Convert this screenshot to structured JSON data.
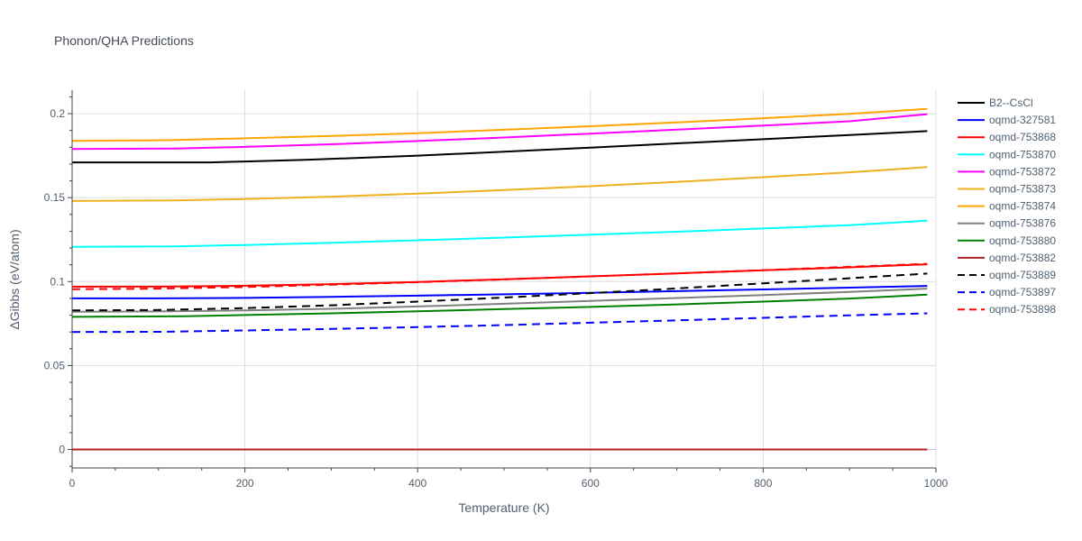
{
  "chart_data": {
    "type": "line",
    "title": "Phonon/QHA Predictions",
    "xlabel": "Temperature (K)",
    "ylabel": "ΔGibbs (eV/atom)",
    "xlim": [
      0,
      1000
    ],
    "ylim": [
      -0.011,
      0.214
    ],
    "xticks": [
      0,
      200,
      400,
      600,
      800,
      1000
    ],
    "xtick_labels": [
      "0",
      "200",
      "400",
      "600",
      "800",
      "1000"
    ],
    "yticks": [
      0,
      0.05,
      0.1,
      0.15,
      0.2
    ],
    "ytick_labels": [
      "0",
      "0.05",
      "0.1",
      "0.15",
      "0.2"
    ],
    "grid": true,
    "legend_position": "right",
    "series": [
      {
        "name": "B2--CsCl",
        "color": "#000000",
        "dash": "solid",
        "x": [
          0,
          100,
          160,
          200,
          270,
          400,
          500,
          600,
          700,
          800,
          900,
          990
        ],
        "y": [
          0.171,
          0.171,
          0.171,
          0.1715,
          0.1725,
          0.175,
          0.1773,
          0.1798,
          0.1823,
          0.1848,
          0.1873,
          0.1896
        ]
      },
      {
        "name": "oqmd-327581",
        "color": "#0000ff",
        "dash": "solid",
        "x": [
          0,
          100,
          200,
          300,
          400,
          500,
          600,
          700,
          800,
          900,
          990
        ],
        "y": [
          0.09,
          0.09,
          0.0903,
          0.0909,
          0.0916,
          0.0924,
          0.0933,
          0.0943,
          0.0953,
          0.0964,
          0.0974
        ]
      },
      {
        "name": "oqmd-753868",
        "color": "#ff0000",
        "dash": "solid",
        "x": [
          0,
          100,
          200,
          300,
          400,
          500,
          600,
          700,
          800,
          900,
          990
        ],
        "y": [
          0.097,
          0.097,
          0.0975,
          0.0985,
          0.0998,
          0.1014,
          0.1031,
          0.1049,
          0.1067,
          0.1085,
          0.1103
        ]
      },
      {
        "name": "oqmd-753870",
        "color": "#00ffff",
        "dash": "solid",
        "x": [
          0,
          120,
          200,
          300,
          400,
          500,
          600,
          700,
          800,
          900,
          990
        ],
        "y": [
          0.1207,
          0.121,
          0.1218,
          0.1231,
          0.1246,
          0.1262,
          0.1279,
          0.1297,
          0.1316,
          0.1336,
          0.1363
        ]
      },
      {
        "name": "oqmd-753872",
        "color": "#ff00ff",
        "dash": "solid",
        "x": [
          0,
          120,
          200,
          300,
          400,
          500,
          600,
          700,
          800,
          900,
          990
        ],
        "y": [
          0.179,
          0.1792,
          0.1802,
          0.1818,
          0.1837,
          0.1858,
          0.1881,
          0.1905,
          0.1929,
          0.1955,
          0.1997
        ]
      },
      {
        "name": "oqmd-753873",
        "color": "#f0b020",
        "dash": "solid",
        "x": [
          0,
          120,
          200,
          300,
          400,
          500,
          600,
          700,
          800,
          900,
          990
        ],
        "y": [
          0.148,
          0.1483,
          0.1492,
          0.1506,
          0.1524,
          0.1545,
          0.1568,
          0.1594,
          0.1622,
          0.1651,
          0.1682
        ]
      },
      {
        "name": "oqmd-753874",
        "color": "#ffa500",
        "dash": "solid",
        "x": [
          0,
          110,
          200,
          300,
          400,
          500,
          600,
          700,
          800,
          900,
          990
        ],
        "y": [
          0.1838,
          0.1842,
          0.1853,
          0.1867,
          0.1884,
          0.1904,
          0.1925,
          0.1948,
          0.1973,
          0.1999,
          0.2029
        ]
      },
      {
        "name": "oqmd-753876",
        "color": "#808080",
        "dash": "solid",
        "x": [
          0,
          100,
          200,
          300,
          400,
          500,
          600,
          700,
          800,
          900,
          990
        ],
        "y": [
          0.082,
          0.0822,
          0.0828,
          0.0838,
          0.0852,
          0.0868,
          0.0885,
          0.0902,
          0.092,
          0.0938,
          0.0958
        ]
      },
      {
        "name": "oqmd-753880",
        "color": "#008000",
        "dash": "solid",
        "x": [
          0,
          130,
          200,
          300,
          400,
          500,
          600,
          700,
          800,
          900,
          990
        ],
        "y": [
          0.079,
          0.0793,
          0.0801,
          0.0811,
          0.0823,
          0.0836,
          0.0849,
          0.0864,
          0.0881,
          0.0899,
          0.0922
        ]
      },
      {
        "name": "oqmd-753882",
        "color": "#b22222",
        "dash": "solid",
        "x": [
          0,
          990
        ],
        "y": [
          0.0,
          0.0
        ]
      },
      {
        "name": "oqmd-753889",
        "color": "#000000",
        "dash": "dash",
        "x": [
          0,
          100,
          200,
          300,
          400,
          500,
          600,
          700,
          800,
          900,
          990
        ],
        "y": [
          0.0828,
          0.0831,
          0.0842,
          0.0859,
          0.0881,
          0.0905,
          0.0931,
          0.0959,
          0.0989,
          0.102,
          0.1048
        ]
      },
      {
        "name": "oqmd-753897",
        "color": "#0000ff",
        "dash": "dash",
        "x": [
          0,
          100,
          200,
          300,
          400,
          500,
          600,
          700,
          800,
          900,
          990
        ],
        "y": [
          0.07,
          0.0701,
          0.0709,
          0.0718,
          0.0729,
          0.0741,
          0.0755,
          0.0769,
          0.0784,
          0.0799,
          0.0811
        ]
      },
      {
        "name": "oqmd-753898",
        "color": "#ff0000",
        "dash": "dash",
        "x": [
          0,
          100,
          200,
          300,
          400,
          500,
          600,
          700,
          800,
          900,
          990
        ],
        "y": [
          0.0955,
          0.0958,
          0.0968,
          0.0981,
          0.0996,
          0.1013,
          0.1031,
          0.1049,
          0.1068,
          0.1088,
          0.1106
        ]
      }
    ]
  }
}
